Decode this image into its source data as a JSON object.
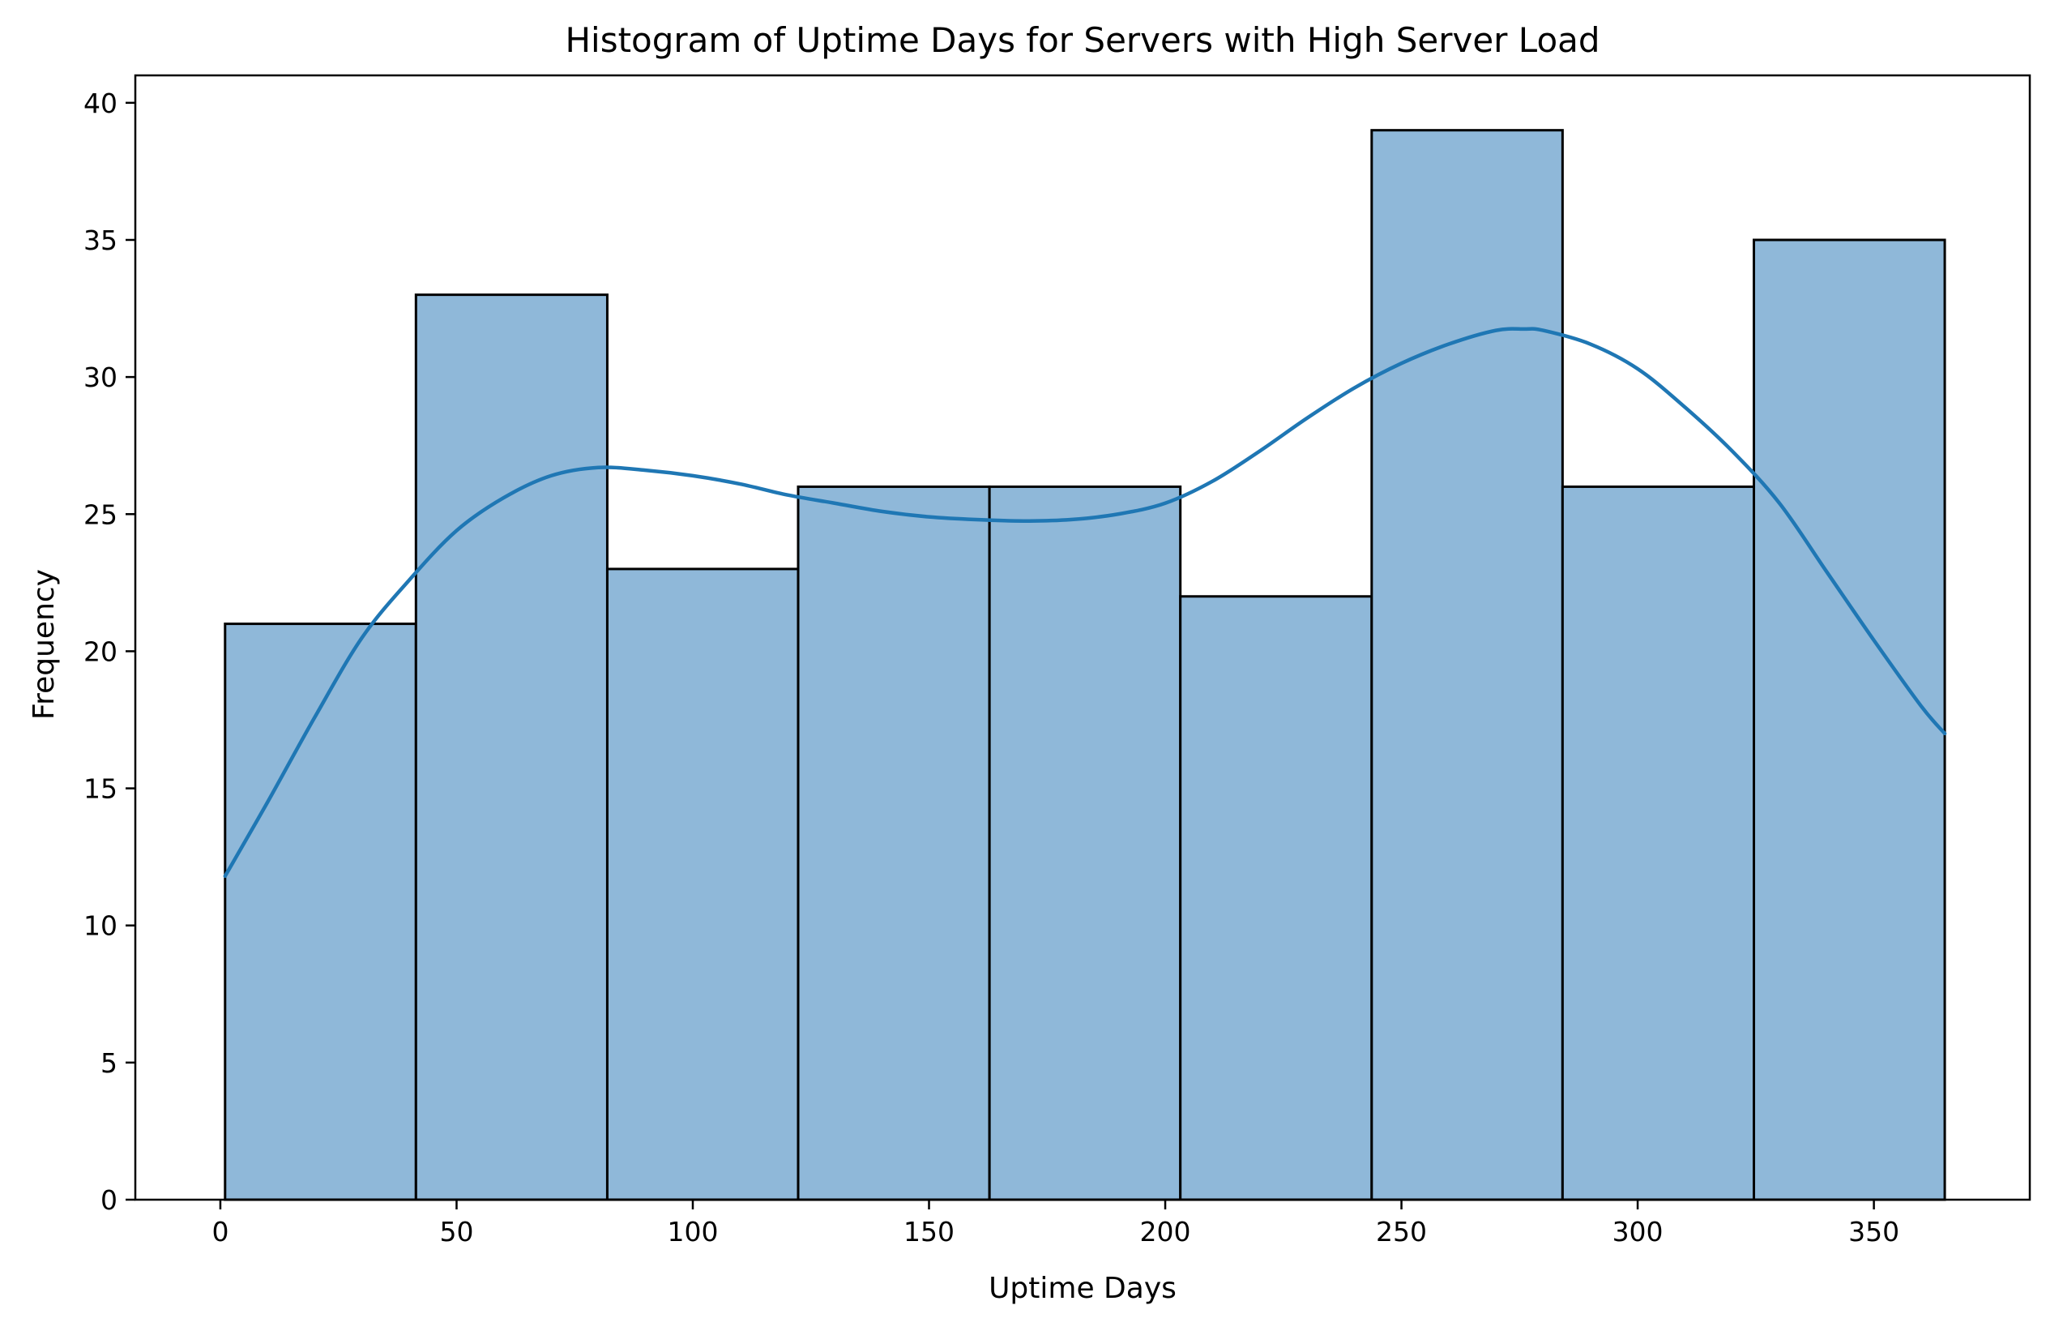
{
  "chart_data": {
    "type": "bar",
    "title": "Histogram of Uptime Days for Servers with High Server Load",
    "xlabel": "Uptime Days",
    "ylabel": "Frequency",
    "xlim": [
      -18,
      383
    ],
    "ylim": [
      0,
      41
    ],
    "grid": false,
    "legend": "none",
    "x_ticks": [
      0,
      50,
      100,
      150,
      200,
      250,
      300,
      350
    ],
    "y_ticks": [
      0,
      5,
      10,
      15,
      20,
      25,
      30,
      35,
      40
    ],
    "bins": [
      {
        "start": 1.0,
        "end": 41.4,
        "count": 21
      },
      {
        "start": 41.4,
        "end": 81.9,
        "count": 33
      },
      {
        "start": 81.9,
        "end": 122.3,
        "count": 23
      },
      {
        "start": 122.3,
        "end": 162.8,
        "count": 26
      },
      {
        "start": 162.8,
        "end": 203.2,
        "count": 26
      },
      {
        "start": 203.2,
        "end": 243.7,
        "count": 22
      },
      {
        "start": 243.7,
        "end": 284.1,
        "count": 39
      },
      {
        "start": 284.1,
        "end": 324.6,
        "count": 26
      },
      {
        "start": 324.6,
        "end": 365.0,
        "count": 35
      }
    ],
    "kde": {
      "x": [
        1,
        10,
        20,
        30,
        40,
        50,
        60,
        70,
        80,
        90,
        100,
        110,
        120,
        130,
        140,
        150,
        160,
        170,
        180,
        190,
        200,
        210,
        220,
        230,
        240,
        250,
        260,
        270,
        276,
        280,
        290,
        300,
        310,
        320,
        330,
        340,
        350,
        360,
        365
      ],
      "y": [
        11.8,
        14.5,
        17.6,
        20.5,
        22.6,
        24.4,
        25.6,
        26.4,
        26.7,
        26.6,
        26.4,
        26.1,
        25.7,
        25.4,
        25.1,
        24.9,
        24.8,
        24.75,
        24.8,
        25.0,
        25.4,
        26.2,
        27.3,
        28.5,
        29.6,
        30.5,
        31.2,
        31.7,
        31.75,
        31.7,
        31.2,
        30.3,
        28.9,
        27.3,
        25.4,
        22.9,
        20.4,
        18.0,
        17.0
      ]
    },
    "colors": {
      "bar_fill": "#8fb8d9",
      "bar_edge": "#000000",
      "kde_line": "#1f77b4"
    }
  }
}
